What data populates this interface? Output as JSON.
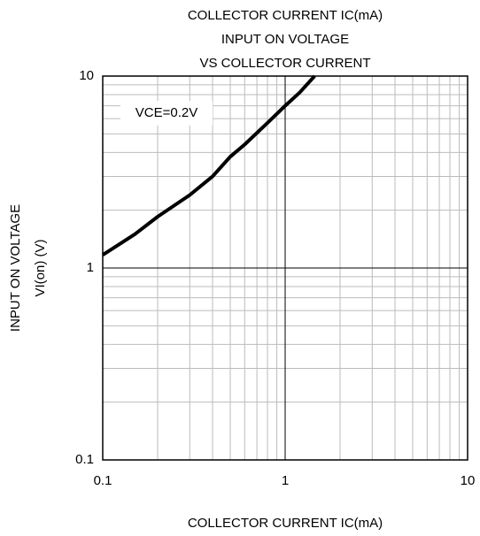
{
  "chart_data": {
    "type": "line",
    "title": [
      "COLLECTOR CURRENT  IC(mA)",
      "INPUT ON VOLTAGE",
      "VS COLLECTOR CURRENT"
    ],
    "xlabel": "COLLECTOR CURRENT  IC(mA)",
    "ylabel": [
      "INPUT ON VOLTAGE",
      "VI(on) (V)"
    ],
    "annotation": "VCE=0.2V",
    "x": [
      0.1,
      0.15,
      0.2,
      0.3,
      0.4,
      0.5,
      0.6,
      0.8,
      1,
      1.2,
      1.45
    ],
    "series": [
      {
        "name": "VCE=0.2V",
        "color": "#000000",
        "values": [
          1.17,
          1.5,
          1.85,
          2.4,
          3.0,
          3.8,
          4.4,
          5.7,
          7.0,
          8.2,
          10
        ]
      }
    ],
    "xlim": [
      0.1,
      10
    ],
    "ylim": [
      0.1,
      10
    ],
    "xticks": [
      0.1,
      1,
      10
    ],
    "yticks": [
      0.1,
      1,
      10
    ],
    "xscale": "log",
    "yscale": "log",
    "grid": true
  }
}
